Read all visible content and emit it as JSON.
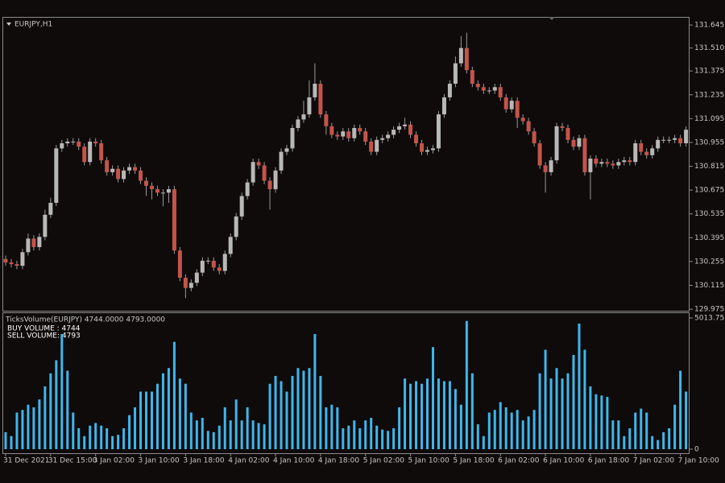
{
  "chart_data": [
    {
      "type": "candlestick",
      "title": "EURJPY,H1",
      "categories": [
        "31 Dec 2021",
        null,
        null,
        null,
        null,
        null,
        null,
        null,
        "31 Dec 15:00",
        null,
        null,
        null,
        null,
        null,
        null,
        null,
        "3 Jan 02:00",
        null,
        null,
        null,
        null,
        null,
        null,
        null,
        "3 Jan 10:00",
        null,
        null,
        null,
        null,
        null,
        null,
        null,
        "3 Jan 18:00",
        null,
        null,
        null,
        null,
        null,
        null,
        null,
        "4 Jan 02:00",
        null,
        null,
        null,
        null,
        null,
        null,
        null,
        "4 Jan 10:00",
        null,
        null,
        null,
        null,
        null,
        null,
        null,
        "4 Jan 18:00",
        null,
        null,
        null,
        null,
        null,
        null,
        null,
        "5 Jan 02:00",
        null,
        null,
        null,
        null,
        null,
        null,
        null,
        "5 Jan 10:00",
        null,
        null,
        null,
        null,
        null,
        null,
        null,
        "5 Jan 18:00",
        null,
        null,
        null,
        null,
        null,
        null,
        null,
        "6 Jan 02:00",
        null,
        null,
        null,
        null,
        null,
        null,
        null,
        "6 Jan 10:00",
        null,
        null,
        null,
        null,
        null,
        null,
        null,
        "6 Jan 18:00",
        null,
        null,
        null,
        null,
        null,
        null,
        null,
        "7 Jan 02:00",
        null,
        null,
        null,
        null,
        null,
        null,
        null,
        "7 Jan 10:00",
        null
      ],
      "open": [
        130.27,
        130.25,
        130.24,
        130.23,
        130.31,
        130.39,
        130.34,
        130.4,
        130.53,
        130.6,
        130.92,
        130.95,
        130.96,
        130.96,
        130.93,
        130.84,
        130.96,
        130.95,
        130.85,
        130.78,
        130.8,
        130.74,
        130.79,
        130.81,
        130.79,
        130.73,
        130.7,
        130.68,
        130.66,
        130.66,
        130.68,
        130.32,
        130.16,
        130.1,
        130.13,
        130.19,
        130.26,
        130.26,
        130.22,
        130.2,
        130.3,
        130.4,
        130.52,
        130.64,
        130.72,
        130.84,
        130.82,
        130.73,
        130.68,
        130.79,
        130.9,
        130.92,
        131.04,
        131.09,
        131.12,
        131.22,
        131.3,
        131.12,
        131.05,
        131.0,
        130.99,
        131.02,
        130.98,
        131.04,
        131.02,
        130.96,
        130.9,
        130.97,
        130.98,
        131.0,
        131.03,
        131.05,
        131.06,
        131.0,
        130.95,
        130.9,
        130.91,
        130.92,
        131.12,
        131.22,
        131.3,
        131.42,
        131.51,
        131.38,
        131.3,
        131.28,
        131.26,
        131.26,
        131.28,
        131.22,
        131.15,
        131.2,
        131.1,
        131.08,
        131.02,
        130.95,
        130.82,
        130.78,
        130.85,
        131.05,
        131.04,
        130.97,
        130.93,
        130.98,
        130.78,
        130.86,
        130.83,
        130.84,
        130.83,
        130.82,
        130.84,
        130.85,
        130.84,
        130.95,
        130.9,
        130.88,
        130.92,
        130.97,
        130.97,
        130.97,
        130.98,
        130.95
      ],
      "high": [
        130.29,
        130.27,
        130.26,
        130.33,
        130.42,
        130.41,
        130.42,
        130.56,
        130.63,
        130.94,
        130.97,
        130.98,
        130.98,
        130.98,
        130.95,
        130.98,
        130.98,
        130.97,
        130.87,
        130.82,
        130.82,
        130.81,
        130.83,
        130.83,
        130.81,
        130.75,
        130.72,
        130.7,
        130.68,
        130.7,
        130.7,
        130.34,
        130.18,
        130.15,
        130.21,
        130.28,
        130.28,
        130.28,
        130.24,
        130.32,
        130.42,
        130.54,
        130.66,
        130.74,
        130.86,
        130.86,
        130.84,
        130.75,
        130.81,
        130.92,
        130.94,
        131.06,
        131.11,
        131.2,
        131.32,
        131.42,
        131.32,
        131.14,
        131.07,
        131.02,
        131.04,
        131.04,
        131.06,
        131.06,
        131.04,
        130.98,
        130.99,
        131.0,
        131.02,
        131.05,
        131.07,
        131.1,
        131.08,
        131.02,
        130.97,
        130.93,
        130.94,
        131.14,
        131.24,
        131.32,
        131.46,
        131.58,
        131.6,
        131.4,
        131.32,
        131.3,
        131.28,
        131.3,
        131.3,
        131.24,
        131.22,
        131.22,
        131.12,
        131.1,
        131.04,
        130.97,
        130.84,
        130.87,
        131.07,
        131.07,
        131.06,
        130.99,
        131.0,
        131.0,
        130.88,
        130.88,
        130.86,
        130.86,
        130.85,
        130.86,
        130.87,
        130.87,
        130.97,
        130.97,
        130.92,
        130.94,
        130.99,
        130.99,
        130.99,
        131.0,
        131.0,
        131.05
      ],
      "low": [
        130.23,
        130.22,
        130.21,
        130.21,
        130.29,
        130.32,
        130.32,
        130.38,
        130.51,
        130.58,
        130.9,
        130.93,
        130.94,
        130.91,
        130.82,
        130.82,
        130.93,
        130.83,
        130.76,
        130.76,
        130.72,
        130.72,
        130.77,
        130.77,
        130.71,
        130.64,
        130.62,
        130.64,
        130.58,
        130.6,
        130.3,
        130.14,
        130.04,
        130.08,
        130.11,
        130.17,
        130.24,
        130.2,
        130.18,
        130.18,
        130.28,
        130.38,
        130.5,
        130.62,
        130.7,
        130.8,
        130.71,
        130.56,
        130.66,
        130.77,
        130.88,
        130.9,
        131.02,
        131.07,
        131.1,
        131.2,
        131.1,
        131.0,
        130.98,
        130.97,
        130.97,
        130.96,
        130.96,
        131.0,
        130.94,
        130.88,
        130.88,
        130.95,
        130.96,
        130.98,
        131.01,
        131.03,
        130.98,
        130.93,
        130.88,
        130.88,
        130.89,
        130.9,
        131.1,
        131.2,
        131.28,
        131.4,
        131.36,
        131.28,
        131.26,
        131.24,
        131.24,
        131.24,
        131.2,
        131.13,
        131.13,
        131.04,
        131.06,
        131.0,
        130.93,
        130.8,
        130.66,
        130.76,
        130.83,
        131.02,
        130.95,
        130.91,
        130.91,
        130.76,
        130.62,
        130.81,
        130.81,
        130.81,
        130.8,
        130.8,
        130.82,
        130.82,
        130.82,
        130.88,
        130.86,
        130.86,
        130.9,
        130.95,
        130.95,
        130.95,
        130.93,
        130.93
      ],
      "close": [
        130.25,
        130.24,
        130.23,
        130.31,
        130.39,
        130.34,
        130.4,
        130.53,
        130.6,
        130.92,
        130.95,
        130.96,
        130.96,
        130.93,
        130.84,
        130.96,
        130.95,
        130.85,
        130.78,
        130.8,
        130.74,
        130.79,
        130.81,
        130.79,
        130.73,
        130.7,
        130.68,
        130.66,
        130.66,
        130.68,
        130.32,
        130.16,
        130.1,
        130.13,
        130.19,
        130.26,
        130.26,
        130.22,
        130.2,
        130.3,
        130.4,
        130.52,
        130.64,
        130.72,
        130.84,
        130.82,
        130.73,
        130.68,
        130.79,
        130.9,
        130.92,
        131.04,
        131.09,
        131.12,
        131.22,
        131.3,
        131.12,
        131.05,
        131.0,
        130.99,
        131.02,
        130.98,
        131.04,
        131.02,
        130.96,
        130.9,
        130.97,
        130.98,
        131.0,
        131.03,
        131.05,
        131.06,
        131.0,
        130.95,
        130.9,
        130.91,
        130.92,
        131.12,
        131.22,
        131.3,
        131.42,
        131.51,
        131.38,
        131.3,
        131.28,
        131.26,
        131.26,
        131.28,
        131.22,
        131.15,
        131.2,
        131.1,
        131.08,
        131.02,
        130.95,
        130.82,
        130.78,
        130.85,
        131.05,
        131.04,
        130.97,
        130.93,
        130.98,
        130.78,
        130.86,
        130.83,
        130.84,
        130.83,
        130.82,
        130.84,
        130.85,
        130.84,
        130.95,
        130.9,
        130.88,
        130.92,
        130.97,
        130.97,
        130.97,
        130.98,
        130.95,
        131.03
      ],
      "up_color": "#b8b8b8",
      "down_color": "#c4544a",
      "wick_color": "#9a9a9a",
      "ylim": [
        129.966,
        131.688
      ],
      "yticks": [
        131.645,
        {
          "value": 131.51,
          "label": "131.510"
        },
        131.375,
        131.235,
        131.095,
        130.955,
        130.815,
        130.675,
        130.535,
        130.395,
        130.255,
        130.115,
        129.975
      ]
    },
    {
      "type": "bar",
      "title": "TicksVolume(EURJPY) 4744.0000 4793.0000",
      "annotations": [
        "BUY VOLUME : 4744",
        "SELL VOLUME: 4793"
      ],
      "values": [
        650,
        500,
        1400,
        1500,
        1700,
        1600,
        1900,
        2400,
        2900,
        3400,
        4400,
        3000,
        1400,
        800,
        500,
        900,
        1000,
        900,
        800,
        500,
        550,
        800,
        1300,
        1600,
        2200,
        2200,
        2200,
        2500,
        2900,
        3100,
        4100,
        2700,
        2500,
        1400,
        1100,
        1200,
        700,
        650,
        900,
        1600,
        1100,
        1900,
        1100,
        1600,
        1100,
        1000,
        950,
        2500,
        2800,
        2600,
        2200,
        2800,
        3100,
        3000,
        3100,
        4400,
        2800,
        1600,
        1700,
        1600,
        800,
        900,
        1100,
        800,
        1100,
        1200,
        900,
        750,
        700,
        800,
        1600,
        2700,
        2500,
        2600,
        2500,
        2700,
        3900,
        2700,
        2600,
        2600,
        2300,
        1700,
        4900,
        2900,
        950,
        500,
        1400,
        1500,
        1800,
        1600,
        1400,
        1500,
        1100,
        1250,
        1500,
        2900,
        3800,
        2700,
        3100,
        2700,
        2900,
        3600,
        4800,
        3800,
        2400,
        2100,
        2050,
        2000,
        1100,
        1100,
        500,
        800,
        1400,
        1550,
        1400,
        500,
        350,
        650,
        800,
        1700,
        3000,
        2200
      ],
      "color": "#3fb6ec",
      "ylim": [
        0,
        5013.75
      ],
      "yticks": [
        5013.75,
        0
      ]
    }
  ]
}
